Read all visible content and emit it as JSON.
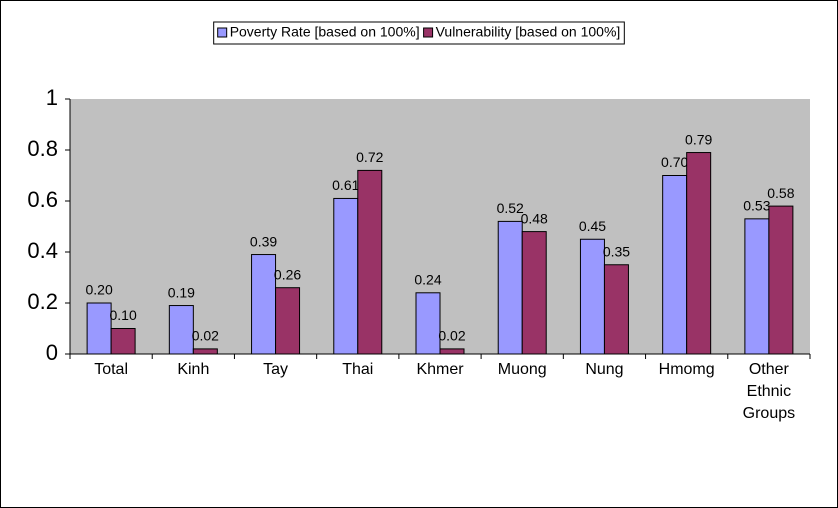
{
  "chart_data": {
    "type": "bar",
    "categories": [
      "Total",
      "Kinh",
      "Tay",
      "Thai",
      "Khmer",
      "Muong",
      "Nung",
      "Hmomg",
      "Other Ethnic Groups"
    ],
    "series": [
      {
        "name": "Poverty Rate [based on 100%]",
        "color": "#9999ff",
        "values": [
          0.2,
          0.19,
          0.39,
          0.61,
          0.24,
          0.52,
          0.45,
          0.7,
          0.53
        ],
        "value_labels": [
          "0.20",
          "0.19",
          "0.39",
          "0.61",
          "0.24",
          "0.52",
          "0.45",
          "0.70",
          "0.53"
        ]
      },
      {
        "name": "Vulnerability [based on 100%]",
        "color": "#993366",
        "values": [
          0.1,
          0.02,
          0.26,
          0.72,
          0.02,
          0.48,
          0.35,
          0.79,
          0.58
        ],
        "value_labels": [
          "0.10",
          "0.02",
          "0.26",
          "0.72",
          "0.02",
          "0.48",
          "0.35",
          "0.79",
          "0.58"
        ]
      }
    ],
    "ylim": [
      0,
      1
    ],
    "yticks": [
      0,
      0.2,
      0.4,
      0.6,
      0.8,
      1
    ],
    "grid": false,
    "legend": "top",
    "plot_background": "#c0c0c0"
  }
}
